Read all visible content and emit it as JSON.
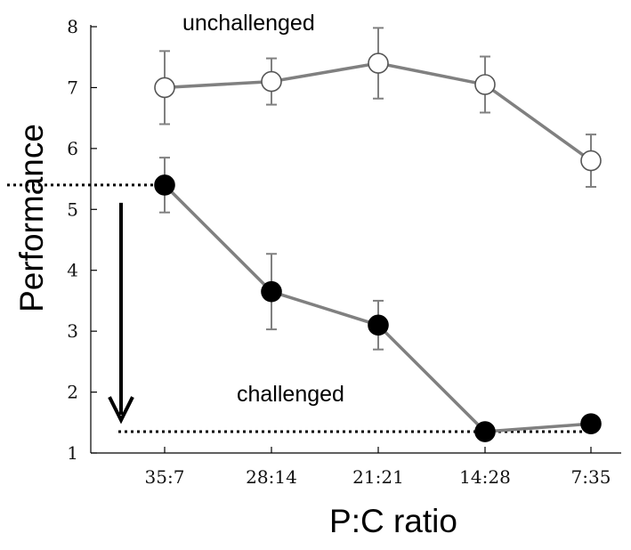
{
  "chart_data": {
    "type": "line",
    "title": "",
    "xlabel": "P:C ratio",
    "ylabel": "Performance",
    "categories": [
      "35:7",
      "28:14",
      "21:21",
      "14:28",
      "7:35"
    ],
    "ylim": [
      1,
      8
    ],
    "yticks": [
      1,
      2,
      3,
      4,
      5,
      6,
      7,
      8
    ],
    "grid": false,
    "legend": "none",
    "series": [
      {
        "name": "unchallenged",
        "marker": "open-circle",
        "values": [
          7.0,
          7.1,
          7.4,
          7.05,
          5.8
        ],
        "error": [
          0.6,
          0.38,
          0.58,
          0.46,
          0.43
        ]
      },
      {
        "name": "challenged",
        "marker": "filled-circle",
        "values": [
          5.4,
          3.65,
          3.1,
          1.35,
          1.48
        ],
        "error": [
          0.45,
          0.62,
          0.4,
          0.0,
          0.0
        ]
      }
    ],
    "reference_lines": [
      {
        "style": "dotted",
        "y": 5.4
      },
      {
        "style": "dotted",
        "y": 1.35
      }
    ],
    "annotations": [
      {
        "text": "unchallenged"
      },
      {
        "text": "challenged"
      },
      {
        "type": "arrow",
        "from_y": 5.4,
        "to_y": 1.35
      }
    ],
    "colors": {
      "line": "#808080",
      "marker_fill_filled": "#000000",
      "marker_fill_open": "#ffffff",
      "axis": "#000000"
    }
  }
}
